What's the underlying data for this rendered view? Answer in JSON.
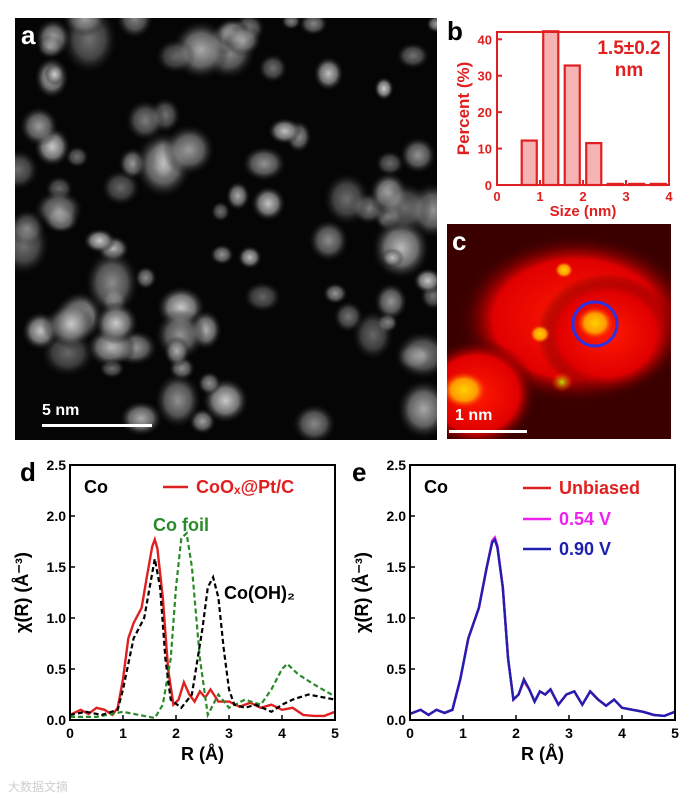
{
  "panels": {
    "a": {
      "letter": "a",
      "scalebar_label": "5 nm"
    },
    "b": {
      "letter": "b"
    },
    "c": {
      "letter": "c",
      "scalebar_label": "1 nm"
    },
    "d": {
      "letter": "d"
    },
    "e": {
      "letter": "e"
    }
  },
  "watermark": "大数据文摘",
  "chart_data": [
    {
      "id": "b",
      "type": "bar",
      "title": "",
      "annotation": [
        "1.5±0.2",
        "nm"
      ],
      "xlabel": "Size (nm)",
      "ylabel": "Percent (%)",
      "xlim": [
        0,
        4
      ],
      "ylim": [
        0,
        42
      ],
      "xticks": [
        0,
        1,
        2,
        3,
        4
      ],
      "yticks": [
        0,
        10,
        20,
        30,
        40
      ],
      "bar_width": 0.35,
      "x": [
        0.75,
        1.25,
        1.75,
        2.25,
        2.75,
        3.25,
        3.75
      ],
      "values": [
        12.2,
        42.2,
        32.8,
        11.5,
        0.3,
        0.3,
        0.3
      ],
      "color": "#e02020"
    },
    {
      "id": "d",
      "type": "line",
      "label": "Co",
      "xlabel": "R (Å)",
      "ylabel": "χ(R) (Å⁻³)",
      "xlim": [
        0,
        5
      ],
      "ylim": [
        0,
        2.5
      ],
      "xticks": [
        0,
        1,
        2,
        3,
        4,
        5
      ],
      "yticks": [
        0.0,
        0.5,
        1.0,
        1.5,
        2.0,
        2.5
      ],
      "legend_position": "top-right",
      "series": [
        {
          "name": "CoOₓ@Pt/C",
          "legend": true,
          "color": "#e02020",
          "dash": false,
          "x": [
            0,
            0.2,
            0.35,
            0.5,
            0.65,
            0.8,
            0.9,
            1.0,
            1.1,
            1.2,
            1.35,
            1.45,
            1.55,
            1.6,
            1.65,
            1.75,
            1.85,
            1.95,
            2.05,
            2.15,
            2.25,
            2.35,
            2.45,
            2.55,
            2.65,
            2.8,
            3.0,
            3.2,
            3.4,
            3.6,
            3.8,
            4.0,
            4.2,
            4.4,
            4.6,
            4.8,
            5.0
          ],
          "y": [
            0.05,
            0.1,
            0.06,
            0.12,
            0.1,
            0.05,
            0.12,
            0.4,
            0.8,
            0.95,
            1.1,
            1.4,
            1.7,
            1.77,
            1.68,
            1.2,
            0.5,
            0.15,
            0.2,
            0.37,
            0.25,
            0.18,
            0.28,
            0.22,
            0.3,
            0.18,
            0.18,
            0.13,
            0.17,
            0.12,
            0.15,
            0.1,
            0.12,
            0.05,
            0.04,
            0.04,
            0.08
          ]
        },
        {
          "name": "Co foil",
          "legend": false,
          "color": "#2a8a2a",
          "dash": true,
          "x": [
            0,
            0.5,
            1.0,
            1.3,
            1.6,
            1.75,
            1.9,
            2.0,
            2.1,
            2.2,
            2.3,
            2.45,
            2.6,
            2.8,
            3.0,
            3.3,
            3.6,
            3.8,
            4.0,
            4.1,
            4.3,
            4.6,
            5.0
          ],
          "y": [
            0.03,
            0.03,
            0.08,
            0.05,
            0.02,
            0.15,
            0.6,
            1.3,
            1.78,
            1.83,
            1.5,
            0.6,
            0.05,
            0.25,
            0.12,
            0.2,
            0.15,
            0.3,
            0.5,
            0.55,
            0.45,
            0.35,
            0.23
          ]
        },
        {
          "name": "Co(OH)₂",
          "legend": false,
          "color": "#000000",
          "dash": true,
          "x": [
            0,
            0.3,
            0.6,
            0.9,
            1.0,
            1.2,
            1.4,
            1.6,
            1.7,
            1.8,
            1.9,
            2.1,
            2.3,
            2.5,
            2.6,
            2.7,
            2.8,
            2.9,
            3.0,
            3.1,
            3.3,
            3.5,
            3.8,
            4.0,
            4.2,
            4.5,
            5.0
          ],
          "y": [
            0.05,
            0.08,
            0.05,
            0.1,
            0.3,
            0.8,
            1.0,
            1.58,
            1.3,
            0.6,
            0.2,
            0.12,
            0.25,
            0.9,
            1.3,
            1.4,
            1.2,
            0.7,
            0.3,
            0.15,
            0.12,
            0.15,
            0.08,
            0.15,
            0.2,
            0.25,
            0.2
          ]
        }
      ],
      "annotations": [
        "Co foil",
        "Co(OH)₂"
      ]
    },
    {
      "id": "e",
      "type": "line",
      "label": "Co",
      "xlabel": "R (Å)",
      "ylabel": "χ(R) (Å⁻³)",
      "xlim": [
        0,
        5
      ],
      "ylim": [
        0,
        2.5
      ],
      "xticks": [
        0,
        1,
        2,
        3,
        4,
        5
      ],
      "yticks": [
        0.0,
        0.5,
        1.0,
        1.5,
        2.0,
        2.5
      ],
      "legend_position": "top-right",
      "series": [
        {
          "name": "Unbiased",
          "color": "#e02020",
          "x": [
            0,
            0.2,
            0.35,
            0.5,
            0.65,
            0.8,
            0.95,
            1.1,
            1.3,
            1.45,
            1.55,
            1.6,
            1.65,
            1.75,
            1.85,
            1.95,
            2.05,
            2.15,
            2.25,
            2.35,
            2.45,
            2.55,
            2.65,
            2.8,
            2.95,
            3.1,
            3.25,
            3.4,
            3.55,
            3.7,
            3.85,
            4.0,
            4.2,
            4.4,
            4.6,
            4.8,
            5.0
          ],
          "y": [
            0.06,
            0.1,
            0.05,
            0.1,
            0.07,
            0.1,
            0.4,
            0.8,
            1.1,
            1.5,
            1.75,
            1.78,
            1.7,
            1.3,
            0.6,
            0.2,
            0.25,
            0.38,
            0.3,
            0.18,
            0.28,
            0.25,
            0.3,
            0.15,
            0.25,
            0.28,
            0.15,
            0.28,
            0.2,
            0.14,
            0.2,
            0.12,
            0.1,
            0.08,
            0.05,
            0.04,
            0.08
          ]
        },
        {
          "name": "0.54 V",
          "color": "#ee22ee",
          "x": [
            0,
            0.2,
            0.35,
            0.5,
            0.65,
            0.8,
            0.95,
            1.1,
            1.3,
            1.45,
            1.55,
            1.6,
            1.65,
            1.75,
            1.85,
            1.95,
            2.05,
            2.15,
            2.25,
            2.35,
            2.45,
            2.55,
            2.65,
            2.8,
            2.95,
            3.1,
            3.25,
            3.4,
            3.55,
            3.7,
            3.85,
            4.0,
            4.2,
            4.4,
            4.6,
            4.8,
            5.0
          ],
          "y": [
            0.06,
            0.1,
            0.05,
            0.1,
            0.07,
            0.1,
            0.4,
            0.8,
            1.1,
            1.5,
            1.76,
            1.79,
            1.71,
            1.3,
            0.6,
            0.2,
            0.25,
            0.39,
            0.3,
            0.18,
            0.28,
            0.25,
            0.3,
            0.15,
            0.25,
            0.28,
            0.15,
            0.28,
            0.2,
            0.14,
            0.2,
            0.12,
            0.1,
            0.08,
            0.05,
            0.04,
            0.08
          ]
        },
        {
          "name": "0.90 V",
          "color": "#2020b0",
          "x": [
            0,
            0.2,
            0.35,
            0.5,
            0.65,
            0.8,
            0.95,
            1.1,
            1.3,
            1.45,
            1.55,
            1.6,
            1.65,
            1.75,
            1.85,
            1.95,
            2.05,
            2.15,
            2.25,
            2.35,
            2.45,
            2.55,
            2.65,
            2.8,
            2.95,
            3.1,
            3.25,
            3.4,
            3.55,
            3.7,
            3.85,
            4.0,
            4.2,
            4.4,
            4.6,
            4.8,
            5.0
          ],
          "y": [
            0.06,
            0.1,
            0.05,
            0.1,
            0.07,
            0.1,
            0.4,
            0.8,
            1.1,
            1.5,
            1.74,
            1.77,
            1.69,
            1.3,
            0.6,
            0.2,
            0.25,
            0.4,
            0.3,
            0.18,
            0.28,
            0.25,
            0.3,
            0.15,
            0.25,
            0.28,
            0.15,
            0.28,
            0.2,
            0.14,
            0.2,
            0.12,
            0.1,
            0.08,
            0.05,
            0.04,
            0.08
          ]
        }
      ]
    }
  ]
}
